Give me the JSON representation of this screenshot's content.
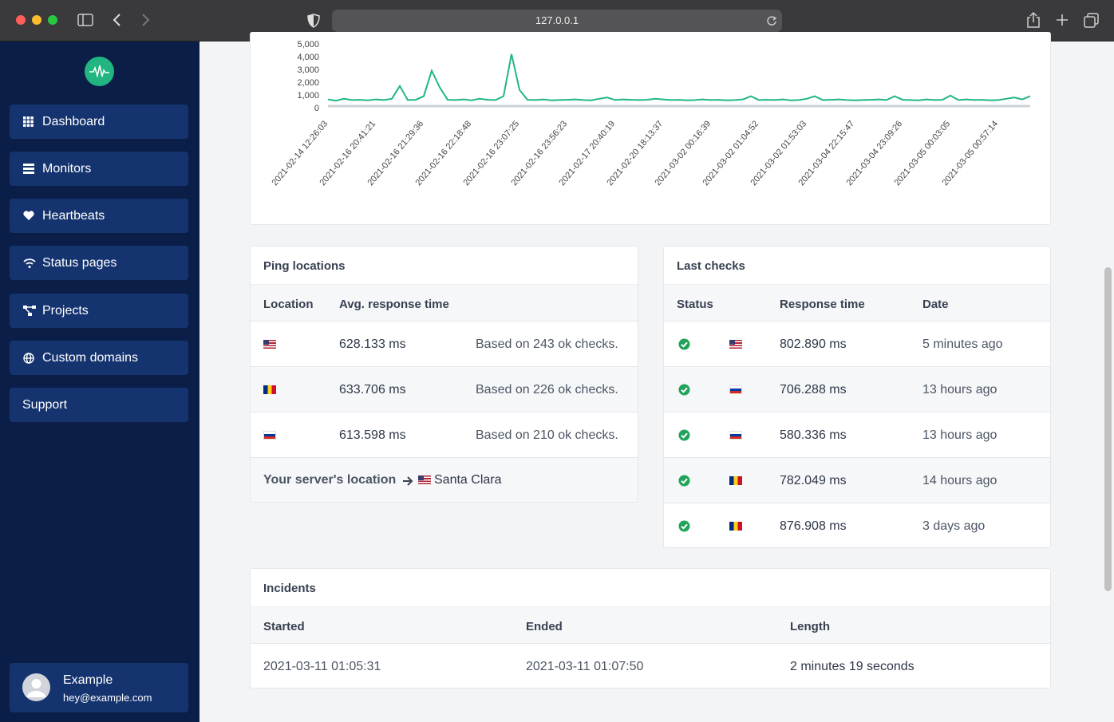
{
  "browser": {
    "url": "127.0.0.1"
  },
  "sidebar": {
    "nav": [
      "Dashboard",
      "Monitors",
      "Heartbeats",
      "Status pages",
      "Projects",
      "Custom domains",
      "Support"
    ],
    "user": {
      "name": "Example",
      "email": "hey@example.com"
    }
  },
  "chart_data": {
    "type": "line",
    "color": "#1fb784",
    "categories": [
      "2021-02-14 12:26:03",
      null,
      null,
      null,
      null,
      null,
      "2021-02-16 20:41:21",
      null,
      null,
      null,
      null,
      null,
      "2021-02-16 21:29:36",
      null,
      null,
      null,
      null,
      null,
      "2021-02-16 22:18:48",
      null,
      null,
      null,
      null,
      null,
      "2021-02-16 23:07:25",
      null,
      null,
      null,
      null,
      null,
      "2021-02-16 23:56:23",
      null,
      null,
      null,
      null,
      null,
      "2021-02-17 20:40:19",
      null,
      null,
      null,
      null,
      null,
      "2021-02-20 18:13:37",
      null,
      null,
      null,
      null,
      null,
      "2021-03-02 00:16:39",
      null,
      null,
      null,
      null,
      null,
      "2021-03-02 01:04:52",
      null,
      null,
      null,
      null,
      null,
      "2021-03-02 01:53:03",
      null,
      null,
      null,
      null,
      null,
      "2021-03-04 22:15:47",
      null,
      null,
      null,
      null,
      null,
      "2021-03-04 23:09:26",
      null,
      null,
      null,
      null,
      null,
      "2021-03-05 00:03:05",
      null,
      null,
      null,
      null,
      null,
      "2021-03-05 00:57:14",
      null,
      null,
      null,
      null
    ],
    "values": [
      650,
      550,
      700,
      600,
      620,
      580,
      650,
      600,
      700,
      1700,
      600,
      620,
      900,
      2900,
      1600,
      620,
      600,
      650,
      580,
      700,
      620,
      600,
      900,
      4200,
      1400,
      620,
      600,
      650,
      580,
      600,
      620,
      650,
      600,
      580,
      700,
      800,
      600,
      650,
      620,
      600,
      620,
      700,
      650,
      600,
      620,
      580,
      600,
      650,
      600,
      620,
      580,
      600,
      650,
      900,
      600,
      620,
      600,
      650,
      580,
      600,
      700,
      900,
      600,
      620,
      650,
      600,
      580,
      600,
      620,
      650,
      600,
      900,
      620,
      600,
      580,
      650,
      600,
      620,
      950,
      600,
      650,
      600,
      620,
      580,
      600,
      700,
      800,
      650,
      900
    ],
    "ylim": [
      0,
      5000
    ],
    "yticks": [
      0,
      {
        "value": 1000,
        "label": "1,000"
      },
      {
        "value": 2000,
        "label": "2,000"
      },
      {
        "value": 3000,
        "label": "3,000"
      },
      {
        "value": 4000,
        "label": "4,000"
      },
      {
        "value": 5000,
        "label": "5,000"
      }
    ]
  },
  "ping_locations": {
    "title": "Ping locations",
    "columns": [
      "Location",
      "Avg. response time"
    ],
    "rows": [
      [
        "628.133 ms",
        "Based on 243 ok checks."
      ],
      [
        "633.706 ms",
        "Based on 226 ok checks."
      ],
      [
        "613.598 ms",
        "Based on 210 ok checks."
      ]
    ],
    "footer_label": "Your server's location",
    "footer_value": "Santa Clara"
  },
  "last_checks": {
    "title": "Last checks",
    "columns": [
      "Status",
      "Response time",
      "Date"
    ],
    "rows": [
      [
        "802.890 ms",
        "5 minutes ago"
      ],
      [
        "706.288 ms",
        "13 hours ago"
      ],
      [
        "580.336 ms",
        "13 hours ago"
      ],
      [
        "782.049 ms",
        "14 hours ago"
      ],
      [
        "876.908 ms",
        "3 days ago"
      ]
    ]
  },
  "incidents": {
    "title": "Incidents",
    "columns": [
      "Started",
      "Ended",
      "Length"
    ],
    "rows": [
      [
        "2021-03-11 01:05:31",
        "2021-03-11 01:07:50",
        "2 minutes 19 seconds"
      ]
    ]
  }
}
